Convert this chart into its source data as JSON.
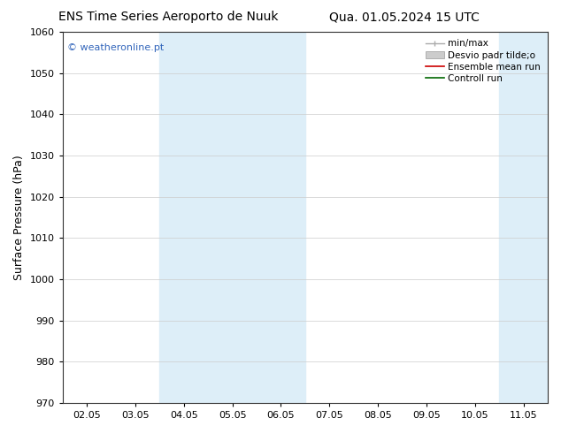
{
  "title_left": "ENS Time Series Aeroporto de Nuuk",
  "title_right": "Qua. 01.05.2024 15 UTC",
  "ylabel": "Surface Pressure (hPa)",
  "ylim": [
    970,
    1060
  ],
  "yticks": [
    970,
    980,
    990,
    1000,
    1010,
    1020,
    1030,
    1040,
    1050,
    1060
  ],
  "xtick_labels": [
    "02.05",
    "03.05",
    "04.05",
    "05.05",
    "06.05",
    "07.05",
    "08.05",
    "09.05",
    "10.05",
    "11.05"
  ],
  "background_color": "#ffffff",
  "shaded_color": "#ddeef8",
  "watermark_text": "© weatheronline.pt",
  "watermark_color": "#3366bb",
  "legend_entries": [
    {
      "label": "min/max",
      "color": "#aaaaaa",
      "type": "minmax"
    },
    {
      "label": "Desvio padr tilde;o",
      "color": "#cccccc",
      "type": "band"
    },
    {
      "label": "Ensemble mean run",
      "color": "#cc0000",
      "type": "line"
    },
    {
      "label": "Controll run",
      "color": "#006600",
      "type": "line"
    }
  ],
  "title_fontsize": 10,
  "tick_fontsize": 8,
  "ylabel_fontsize": 9,
  "watermark_fontsize": 8,
  "legend_fontsize": 7.5,
  "grid_color": "#cccccc",
  "grid_linewidth": 0.5
}
